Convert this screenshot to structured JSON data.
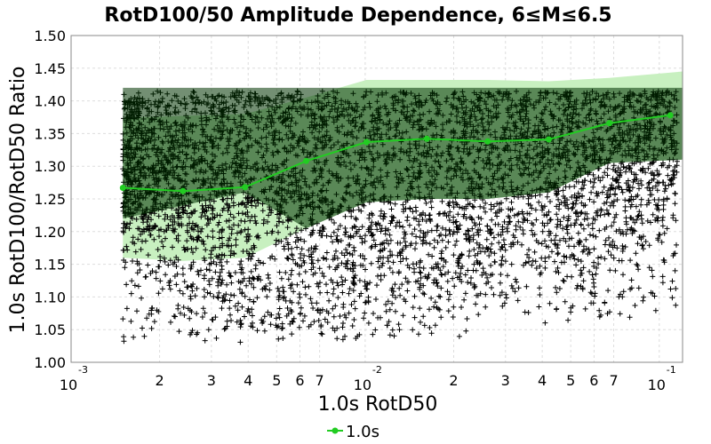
{
  "chart_data": {
    "type": "scatter",
    "title": "RotD100/50 Amplitude Dependence, 6≤M≤6.5",
    "xlabel": "1.0s RotD50",
    "ylabel": "1.0s RotD100/RotD50 Ratio",
    "x_scale": "log",
    "xlim": [
      0.001,
      0.12
    ],
    "ylim": [
      1.0,
      1.5
    ],
    "x_ticks_major": [
      "10",
      "10",
      "10"
    ],
    "x_ticks_major_exp": [
      "-3",
      "-2",
      "-1"
    ],
    "x_ticks_minor_labels": [
      "2",
      "3",
      "4",
      "5",
      "6",
      "7",
      "2",
      "3",
      "4",
      "5",
      "6",
      "7"
    ],
    "y_ticks": [
      "1.00",
      "1.05",
      "1.10",
      "1.15",
      "1.20",
      "1.25",
      "1.30",
      "1.35",
      "1.40",
      "1.45",
      "1.50"
    ],
    "grid": true,
    "legend_position": "bottom",
    "colors": {
      "series": "#22cc22",
      "band_outer": "#c8f0c0",
      "band_inner": "#003300",
      "points": "#000000"
    },
    "series": [
      {
        "name": "1.0s",
        "x": [
          0.0015,
          0.0024,
          0.0039,
          0.0063,
          0.0101,
          0.0162,
          0.0261,
          0.0421,
          0.0677,
          0.109
        ],
        "y": [
          1.267,
          1.262,
          1.268,
          1.308,
          1.337,
          1.342,
          1.338,
          1.341,
          1.366,
          1.378
        ],
        "band_x": [
          0.0015,
          0.0024,
          0.0039,
          0.0063,
          0.0101,
          0.0162,
          0.0261,
          0.0421,
          0.0677,
          0.12
        ],
        "band_upper": [
          1.374,
          1.377,
          1.38,
          1.405,
          1.432,
          1.432,
          1.432,
          1.43,
          1.435,
          1.445
        ],
        "band_lower": [
          1.16,
          1.155,
          1.16,
          1.205,
          1.245,
          1.25,
          1.25,
          1.26,
          1.305,
          1.31
        ]
      }
    ],
    "scatter_point_count": 6000,
    "scatter_y_cap": 1.415
  }
}
